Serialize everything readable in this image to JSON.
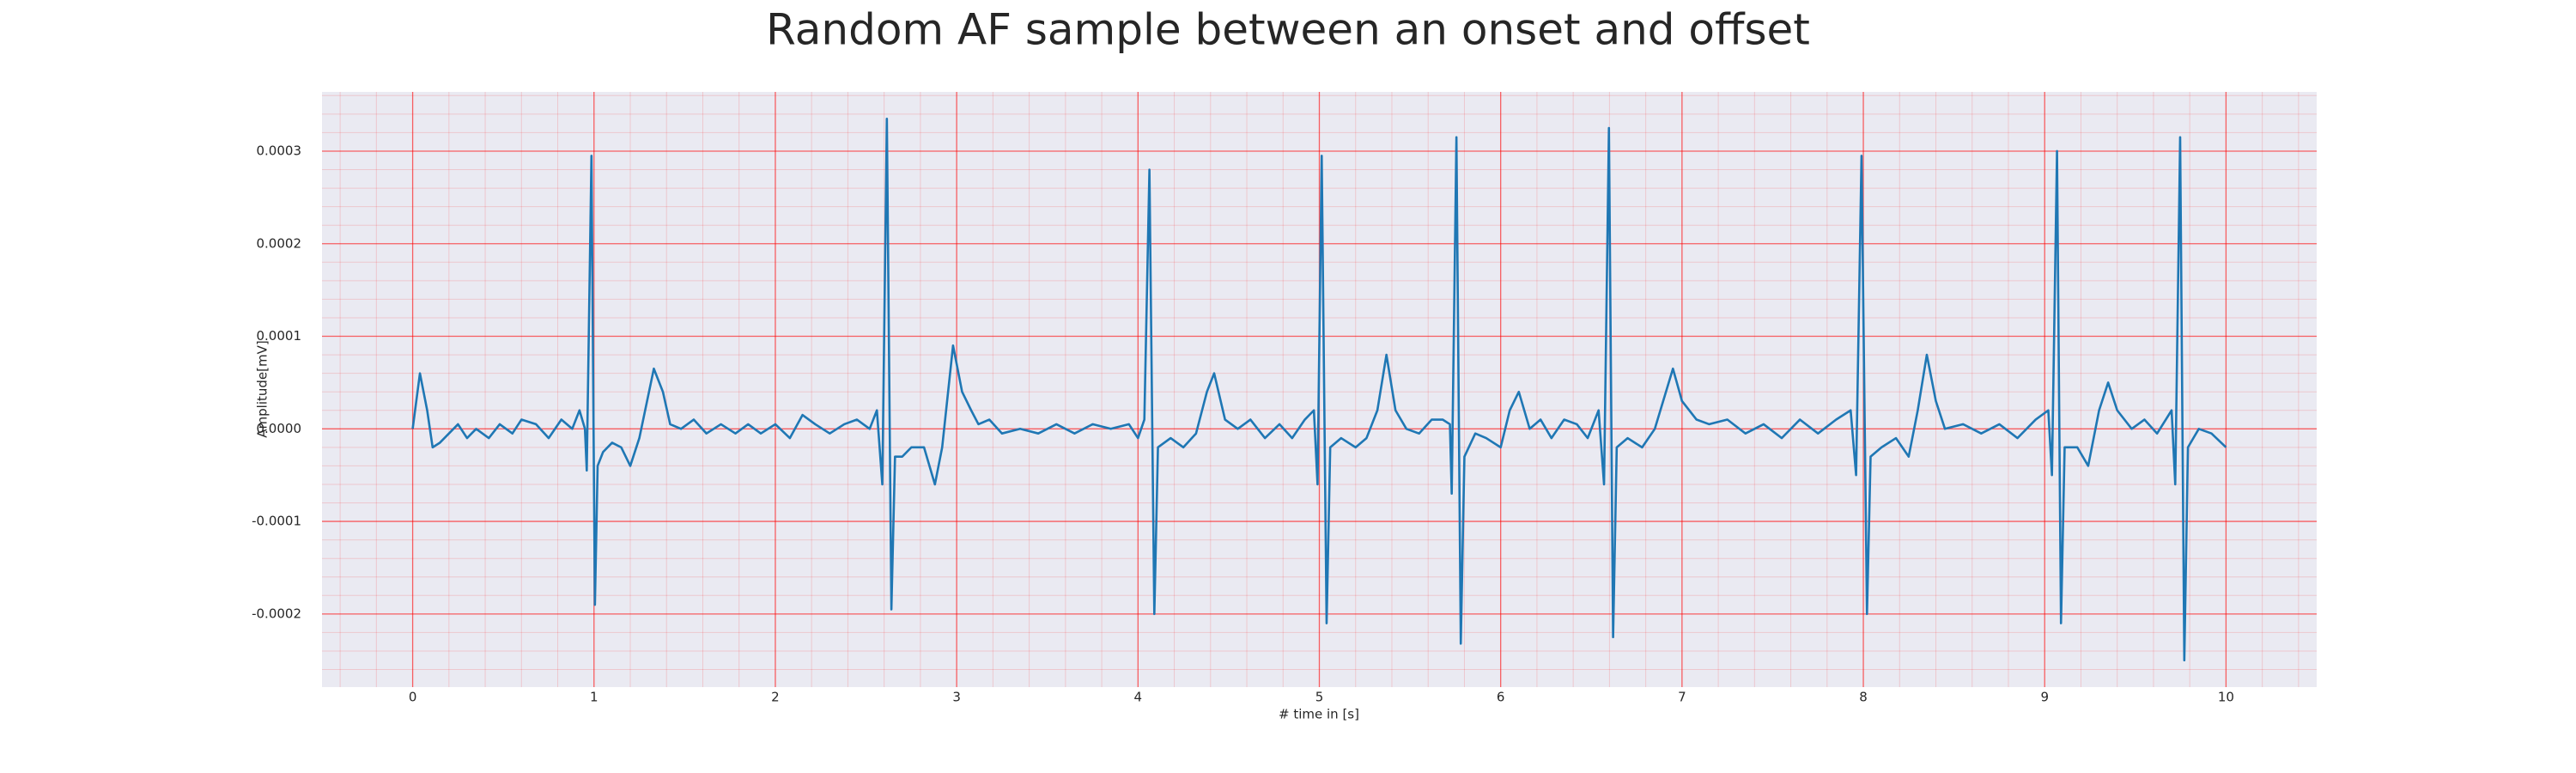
{
  "chart_data": {
    "type": "line",
    "title": "Random AF sample between an onset and offset",
    "xlabel": "# time in [s]",
    "ylabel": "Amplitude[mV]",
    "x": [
      0.0,
      0.04,
      0.08,
      0.11,
      0.15,
      0.2,
      0.25,
      0.3,
      0.35,
      0.42,
      0.48,
      0.55,
      0.6,
      0.68,
      0.75,
      0.82,
      0.88,
      0.92,
      0.95,
      0.96,
      0.986,
      1.005,
      1.02,
      1.05,
      1.1,
      1.15,
      1.2,
      1.25,
      1.33,
      1.38,
      1.42,
      1.48,
      1.55,
      1.62,
      1.7,
      1.78,
      1.85,
      1.92,
      2.0,
      2.08,
      2.15,
      2.22,
      2.3,
      2.38,
      2.45,
      2.52,
      2.56,
      2.59,
      2.615,
      2.64,
      2.66,
      2.7,
      2.75,
      2.82,
      2.88,
      2.92,
      2.98,
      3.03,
      3.08,
      3.12,
      3.18,
      3.25,
      3.35,
      3.45,
      3.55,
      3.65,
      3.75,
      3.85,
      3.95,
      4.0,
      4.035,
      4.063,
      4.09,
      4.11,
      4.18,
      4.25,
      4.32,
      4.38,
      4.42,
      4.48,
      4.55,
      4.62,
      4.7,
      4.78,
      4.85,
      4.92,
      4.97,
      4.99,
      5.013,
      5.04,
      5.06,
      5.12,
      5.2,
      5.26,
      5.32,
      5.37,
      5.42,
      5.48,
      5.55,
      5.62,
      5.68,
      5.72,
      5.73,
      5.756,
      5.78,
      5.8,
      5.86,
      5.92,
      6.0,
      6.05,
      6.1,
      6.16,
      6.22,
      6.28,
      6.35,
      6.42,
      6.48,
      6.54,
      6.57,
      6.597,
      6.62,
      6.64,
      6.7,
      6.78,
      6.85,
      6.95,
      7.0,
      7.08,
      7.15,
      7.25,
      7.35,
      7.45,
      7.55,
      7.65,
      7.75,
      7.85,
      7.93,
      7.96,
      7.99,
      8.02,
      8.04,
      8.1,
      8.18,
      8.25,
      8.3,
      8.35,
      8.4,
      8.45,
      8.55,
      8.65,
      8.75,
      8.85,
      8.95,
      9.02,
      9.04,
      9.068,
      9.09,
      9.11,
      9.18,
      9.24,
      9.3,
      9.35,
      9.4,
      9.48,
      9.55,
      9.62,
      9.7,
      9.72,
      9.747,
      9.77,
      9.79,
      9.85,
      9.92,
      10.0
    ],
    "series": [
      {
        "color": "#1f77b4",
        "values": [
          0.0,
          6e-05,
          2e-05,
          -2e-05,
          -1.5e-05,
          -5e-06,
          5e-06,
          -1e-05,
          0.0,
          -1e-05,
          5e-06,
          -5e-06,
          1e-05,
          5e-06,
          -1e-05,
          1e-05,
          0.0,
          2e-05,
          0.0,
          -4.5e-05,
          0.000295,
          -0.00019,
          -4e-05,
          -2.5e-05,
          -1.5e-05,
          -2e-05,
          -4e-05,
          -1e-05,
          6.5e-05,
          4e-05,
          5e-06,
          0.0,
          1e-05,
          -5e-06,
          5e-06,
          -5e-06,
          5e-06,
          -5e-06,
          5e-06,
          -1e-05,
          1.5e-05,
          5e-06,
          -5e-06,
          5e-06,
          1e-05,
          0.0,
          2e-05,
          -6e-05,
          0.000335,
          -0.000195,
          -3e-05,
          -3e-05,
          -2e-05,
          -2e-05,
          -6e-05,
          -2e-05,
          9e-05,
          4e-05,
          2e-05,
          5e-06,
          1e-05,
          -5e-06,
          0.0,
          -5e-06,
          5e-06,
          -5e-06,
          5e-06,
          0.0,
          5e-06,
          -1e-05,
          1e-05,
          0.00028,
          -0.0002,
          -2e-05,
          -1e-05,
          -2e-05,
          -5e-06,
          4e-05,
          6e-05,
          1e-05,
          0.0,
          1e-05,
          -1e-05,
          5e-06,
          -1e-05,
          1e-05,
          2e-05,
          -6e-05,
          0.000295,
          -0.00021,
          -2e-05,
          -1e-05,
          -2e-05,
          -1e-05,
          2e-05,
          8e-05,
          2e-05,
          0.0,
          -5e-06,
          1e-05,
          1e-05,
          5e-06,
          -7e-05,
          0.000315,
          -0.000232,
          -3e-05,
          -5e-06,
          -1e-05,
          -2e-05,
          2e-05,
          4e-05,
          0.0,
          1e-05,
          -1e-05,
          1e-05,
          5e-06,
          -1e-05,
          2e-05,
          -6e-05,
          0.000325,
          -0.000225,
          -2e-05,
          -1e-05,
          -2e-05,
          0.0,
          6.5e-05,
          3e-05,
          1e-05,
          5e-06,
          1e-05,
          -5e-06,
          5e-06,
          -1e-05,
          1e-05,
          -5e-06,
          1e-05,
          2e-05,
          -5e-05,
          0.000295,
          -0.0002,
          -3e-05,
          -2e-05,
          -1e-05,
          -3e-05,
          2e-05,
          8e-05,
          3e-05,
          0.0,
          5e-06,
          -5e-06,
          5e-06,
          -1e-05,
          1e-05,
          2e-05,
          -5e-05,
          0.0003,
          -0.00021,
          -2e-05,
          -2e-05,
          -4e-05,
          2e-05,
          5e-05,
          2e-05,
          0.0,
          1e-05,
          -5e-06,
          2e-05,
          -6e-05,
          0.000315,
          -0.00025,
          -2e-05,
          0.0,
          -5e-06,
          -2e-05
        ]
      }
    ],
    "xlim": [
      -0.5,
      10.5
    ],
    "xticks": [
      0,
      1,
      2,
      3,
      4,
      5,
      6,
      7,
      8,
      9,
      10
    ],
    "ylim": [
      -0.000279,
      0.000364
    ],
    "yticks": [
      -0.0002,
      -0.0001,
      {
        "value": 0,
        "label": "0.0000"
      },
      0.0001,
      0.0002,
      0.0003
    ],
    "grid": true,
    "minor_grid": true,
    "grid_color": "#ff0000",
    "background": "#eaeaf2"
  }
}
